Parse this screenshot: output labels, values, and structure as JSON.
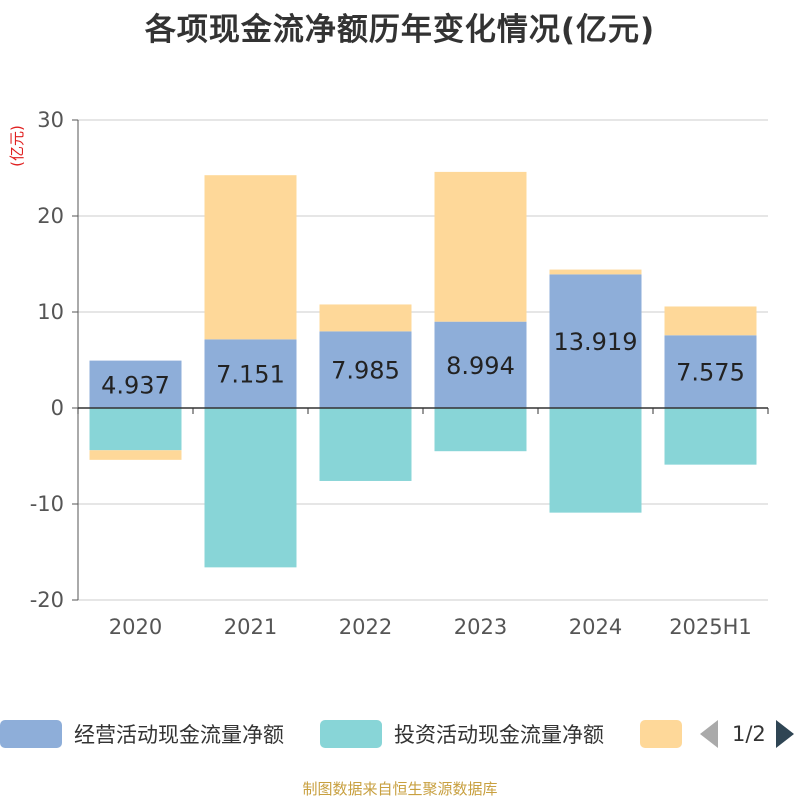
{
  "title": "各项现金流净额历年变化情况(亿元)",
  "source": "制图数据来自恒生聚源数据库",
  "legend": {
    "items": [
      {
        "label": "经营活动现金流量净额",
        "color": "#8eaed9"
      },
      {
        "label": "投资活动现金流量净额",
        "color": "#88d5d7"
      },
      {
        "label": "",
        "color": "#fed899"
      }
    ],
    "pager": "1/2"
  },
  "chart_data": {
    "type": "bar",
    "stacked": true,
    "categories": [
      "2020",
      "2021",
      "2022",
      "2023",
      "2024",
      "2025H1"
    ],
    "ylabel": "(亿元)",
    "ylim": [
      -20,
      30
    ],
    "yticks": [
      -20,
      -10,
      0,
      10,
      20,
      30
    ],
    "grid": true,
    "legend_position": "bottom",
    "series": [
      {
        "name": "经营活动现金流量净额",
        "color": "#8eaed9",
        "values": [
          4.937,
          7.151,
          7.985,
          8.994,
          13.919,
          7.575
        ],
        "labels": [
          "4.937",
          "7.151",
          "7.985",
          "8.994",
          "13.919",
          "7.575"
        ]
      },
      {
        "name": "投资活动现金流量净额",
        "color": "#88d5d7",
        "values": [
          -4.4,
          -16.6,
          -7.6,
          -4.5,
          -10.9,
          -5.9
        ]
      },
      {
        "name": "",
        "color": "#fed899",
        "values": [
          -1.0,
          17.1,
          2.8,
          15.6,
          0.5,
          3.0
        ]
      }
    ]
  }
}
